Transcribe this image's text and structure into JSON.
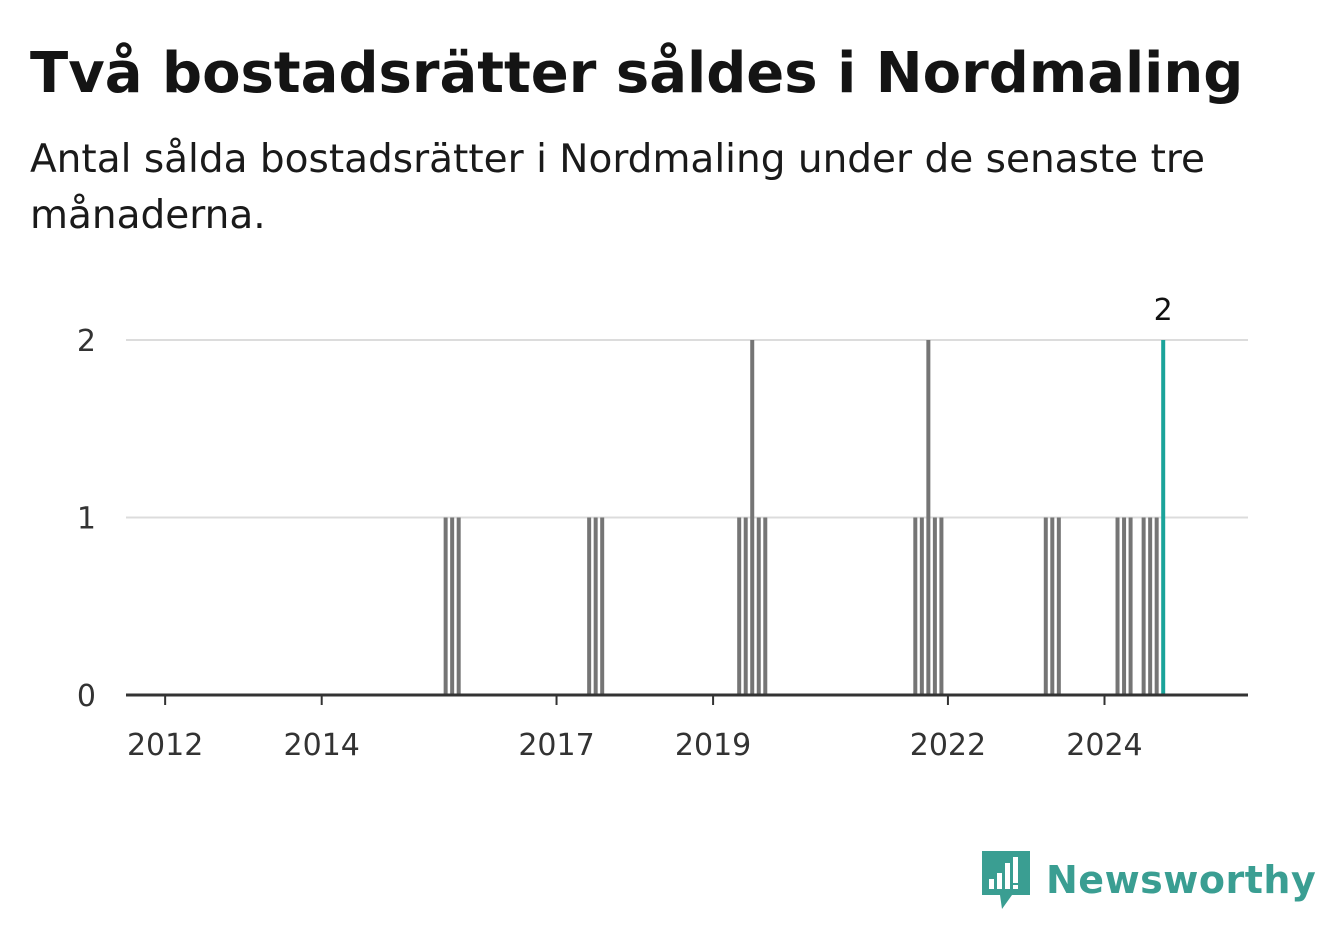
{
  "title": "Två bostadsrätter såldes i Nordmaling",
  "subtitle": "Antal sålda bostadsrätter i Nordmaling under de senaste tre månaderna.",
  "brand": {
    "name": "Newsworthy",
    "icon": "newsworthy-chart-bubble-icon",
    "color": "#3a9e92"
  },
  "colors": {
    "bar": "#757575",
    "highlight": "#1aa39a",
    "grid": "#dcdcdc",
    "axis": "#333333"
  },
  "chart_data": {
    "type": "bar",
    "title": "Två bostadsrätter såldes i Nordmaling",
    "subtitle": "Antal sålda bostadsrätter i Nordmaling under de senaste tre månaderna.",
    "xlabel": "",
    "ylabel": "",
    "x_range": [
      "2011-07",
      "2025-11"
    ],
    "ylim": [
      0,
      2
    ],
    "y_ticks": [
      "0",
      "1",
      "2"
    ],
    "x_ticks": [
      "2012",
      "2014",
      "2017",
      "2019",
      "2022",
      "2024"
    ],
    "grid": true,
    "legend": "none",
    "series": [
      {
        "values": [
          {
            "x": "2015-08",
            "y": 1
          },
          {
            "x": "2015-09",
            "y": 1
          },
          {
            "x": "2015-10",
            "y": 1
          },
          {
            "x": "2017-06",
            "y": 1
          },
          {
            "x": "2017-07",
            "y": 1
          },
          {
            "x": "2017-08",
            "y": 1
          },
          {
            "x": "2019-05",
            "y": 1
          },
          {
            "x": "2019-06",
            "y": 1
          },
          {
            "x": "2019-07",
            "y": 2
          },
          {
            "x": "2019-08",
            "y": 1
          },
          {
            "x": "2019-09",
            "y": 1
          },
          {
            "x": "2021-08",
            "y": 1
          },
          {
            "x": "2021-09",
            "y": 1
          },
          {
            "x": "2021-10",
            "y": 2
          },
          {
            "x": "2021-11",
            "y": 1
          },
          {
            "x": "2021-12",
            "y": 1
          },
          {
            "x": "2023-04",
            "y": 1
          },
          {
            "x": "2023-05",
            "y": 1
          },
          {
            "x": "2023-06",
            "y": 1
          },
          {
            "x": "2024-03",
            "y": 1
          },
          {
            "x": "2024-04",
            "y": 1
          },
          {
            "x": "2024-05",
            "y": 1
          },
          {
            "x": "2024-07",
            "y": 1
          },
          {
            "x": "2024-08",
            "y": 1
          },
          {
            "x": "2024-09",
            "y": 1
          },
          {
            "x": "2024-10",
            "y": 2,
            "highlight": true
          }
        ]
      }
    ],
    "annotations": [
      {
        "x": "2024-10",
        "text": "2"
      }
    ]
  }
}
